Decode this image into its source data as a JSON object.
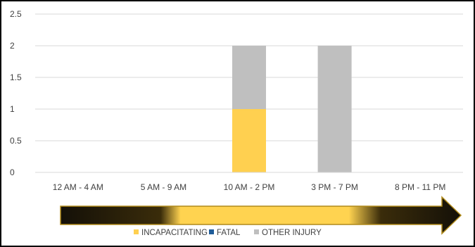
{
  "chart_data": {
    "type": "bar",
    "stacked": true,
    "categories": [
      "12 AM - 4 AM",
      "5 AM - 9 AM",
      "10 AM - 2 PM",
      "3 PM - 7 PM",
      "8 PM - 11 PM"
    ],
    "series": [
      {
        "name": "INCAPACITATING",
        "color": "#FFD050",
        "values": [
          0,
          0,
          1,
          0,
          0
        ]
      },
      {
        "name": "FATAL",
        "color": "#1F5C99",
        "values": [
          0,
          0,
          0,
          0,
          0
        ]
      },
      {
        "name": "OTHER INJURY",
        "color": "#BFBFBF",
        "values": [
          0,
          0,
          1,
          2,
          0
        ]
      }
    ],
    "ylim": [
      0,
      2.5
    ],
    "yticks": [
      "0",
      "0.5",
      "1",
      "1.5",
      "2",
      "2.5"
    ],
    "grid": true,
    "legend_position": "bottom",
    "decoration": "time-progression-arrow"
  }
}
